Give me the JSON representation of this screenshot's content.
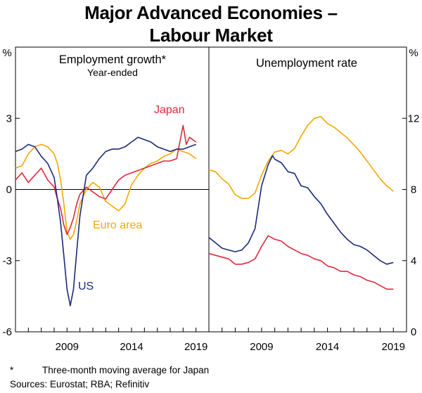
{
  "title": {
    "line1": "Major Advanced Economies –",
    "line2": "Labour Market"
  },
  "footnote": {
    "marker": "*",
    "text": "Three-month moving average for Japan"
  },
  "sources": "Sources: Eurostat; RBA; Refinitiv",
  "colors": {
    "us": "#1b2a7a",
    "euro": "#f2a900",
    "japan": "#e0283c",
    "axis": "#000000"
  },
  "chart_data": [
    {
      "type": "line",
      "title": "Employment growth*",
      "subtitle": "Year-ended",
      "ylabel": "%",
      "ylim": [
        -6,
        6
      ],
      "yticks": [
        -6,
        -3,
        0,
        3
      ],
      "xlim": [
        2005,
        2020
      ],
      "xticks": [
        2009,
        2014,
        2019
      ],
      "series": [
        {
          "name": "US",
          "color": "#1b2a7a",
          "x": [
            2005,
            2005.5,
            2006,
            2006.5,
            2007,
            2007.5,
            2008,
            2008.25,
            2008.5,
            2008.75,
            2009,
            2009.25,
            2009.5,
            2009.75,
            2010,
            2010.5,
            2011,
            2011.5,
            2012,
            2012.5,
            2013,
            2013.5,
            2014,
            2014.5,
            2015,
            2015.5,
            2016,
            2016.5,
            2017,
            2017.5,
            2018,
            2018.5,
            2019
          ],
          "values": [
            1.6,
            1.7,
            1.9,
            1.8,
            1.4,
            1.1,
            0.5,
            -0.4,
            -1.4,
            -2.8,
            -4.2,
            -4.9,
            -4.2,
            -2.6,
            -1.1,
            0.6,
            0.9,
            1.3,
            1.6,
            1.7,
            1.7,
            1.8,
            2.0,
            2.2,
            2.1,
            2.0,
            1.8,
            1.7,
            1.6,
            1.7,
            1.7,
            1.8,
            1.9
          ]
        },
        {
          "name": "Euro area",
          "color": "#f2a900",
          "x": [
            2005,
            2005.5,
            2006,
            2006.5,
            2007,
            2007.5,
            2008,
            2008.25,
            2008.5,
            2008.75,
            2009,
            2009.25,
            2009.5,
            2009.75,
            2010,
            2010.5,
            2011,
            2011.5,
            2012,
            2012.5,
            2013,
            2013.5,
            2014,
            2014.5,
            2015,
            2015.5,
            2016,
            2016.5,
            2017,
            2017.5,
            2018,
            2018.5,
            2019
          ],
          "values": [
            0.9,
            1.0,
            1.5,
            1.8,
            1.9,
            1.8,
            1.5,
            1.1,
            0.4,
            -0.6,
            -1.8,
            -2.1,
            -1.9,
            -1.3,
            -0.6,
            0.0,
            0.3,
            0.1,
            -0.5,
            -0.7,
            -0.9,
            -0.6,
            0.2,
            0.6,
            0.9,
            1.1,
            1.2,
            1.4,
            1.5,
            1.7,
            1.6,
            1.5,
            1.3
          ]
        },
        {
          "name": "Japan",
          "color": "#e0283c",
          "x": [
            2005,
            2005.5,
            2006,
            2006.5,
            2007,
            2007.5,
            2008,
            2008.25,
            2008.5,
            2008.75,
            2009,
            2009.25,
            2009.5,
            2009.75,
            2010,
            2010.5,
            2011,
            2011.5,
            2012,
            2012.5,
            2013,
            2013.5,
            2014,
            2014.5,
            2015,
            2015.5,
            2016,
            2016.5,
            2017,
            2017.5,
            2018,
            2018.25,
            2018.5,
            2019
          ],
          "values": [
            0.4,
            0.7,
            0.3,
            0.6,
            0.9,
            0.4,
            0.1,
            -0.4,
            -0.8,
            -1.5,
            -1.9,
            -1.6,
            -1.2,
            -0.6,
            -0.2,
            0.1,
            -0.1,
            -0.3,
            -0.4,
            0.0,
            0.4,
            0.6,
            0.7,
            0.8,
            0.9,
            1.0,
            1.1,
            1.2,
            1.2,
            1.3,
            2.7,
            1.9,
            2.2,
            2.0
          ]
        }
      ],
      "labels": {
        "us": "US",
        "euro": "Euro area",
        "japan": "Japan"
      }
    },
    {
      "type": "line",
      "title": "Unemployment rate",
      "ylabel": "%",
      "ylim": [
        0,
        16
      ],
      "yticks": [
        0,
        4,
        8,
        12
      ],
      "xlim": [
        2005,
        2020
      ],
      "xticks": [
        2009,
        2014,
        2019
      ],
      "series": [
        {
          "name": "US",
          "color": "#1b2a7a",
          "x": [
            2005,
            2005.5,
            2006,
            2006.5,
            2007,
            2007.5,
            2008,
            2008.5,
            2009,
            2009.5,
            2009.83,
            2010,
            2010.5,
            2011,
            2011.5,
            2012,
            2012.5,
            2013,
            2013.5,
            2014,
            2014.5,
            2015,
            2015.5,
            2016,
            2016.5,
            2017,
            2017.5,
            2018,
            2018.5,
            2019
          ],
          "values": [
            5.3,
            5.0,
            4.7,
            4.6,
            4.5,
            4.6,
            5.0,
            5.8,
            8.2,
            9.4,
            9.9,
            9.7,
            9.5,
            9.0,
            8.9,
            8.2,
            8.1,
            7.6,
            7.2,
            6.6,
            6.1,
            5.6,
            5.2,
            4.9,
            4.8,
            4.6,
            4.3,
            4.0,
            3.8,
            3.9
          ]
        },
        {
          "name": "Euro area",
          "color": "#f2a900",
          "x": [
            2005,
            2005.5,
            2006,
            2006.5,
            2007,
            2007.5,
            2008,
            2008.5,
            2009,
            2009.5,
            2010,
            2010.5,
            2011,
            2011.5,
            2012,
            2012.5,
            2013,
            2013.5,
            2014,
            2014.5,
            2015,
            2015.5,
            2016,
            2016.5,
            2017,
            2017.5,
            2018,
            2018.5,
            2019
          ],
          "values": [
            9.1,
            9.0,
            8.6,
            8.3,
            7.7,
            7.5,
            7.5,
            7.8,
            8.8,
            9.6,
            10.1,
            10.2,
            10.0,
            10.3,
            11.0,
            11.6,
            12.0,
            12.1,
            11.7,
            11.5,
            11.2,
            10.9,
            10.5,
            10.1,
            9.6,
            9.1,
            8.6,
            8.2,
            7.9
          ]
        },
        {
          "name": "Japan",
          "color": "#e0283c",
          "x": [
            2005,
            2005.5,
            2006,
            2006.5,
            2007,
            2007.5,
            2008,
            2008.5,
            2009,
            2009.5,
            2010,
            2010.5,
            2011,
            2011.5,
            2012,
            2012.5,
            2013,
            2013.5,
            2014,
            2014.5,
            2015,
            2015.5,
            2016,
            2016.5,
            2017,
            2017.5,
            2018,
            2018.5,
            2019
          ],
          "values": [
            4.4,
            4.3,
            4.2,
            4.1,
            3.8,
            3.8,
            3.9,
            4.1,
            4.8,
            5.4,
            5.2,
            5.1,
            4.8,
            4.6,
            4.4,
            4.3,
            4.1,
            4.0,
            3.7,
            3.6,
            3.4,
            3.4,
            3.2,
            3.1,
            2.9,
            2.8,
            2.6,
            2.4,
            2.4
          ]
        }
      ]
    }
  ]
}
